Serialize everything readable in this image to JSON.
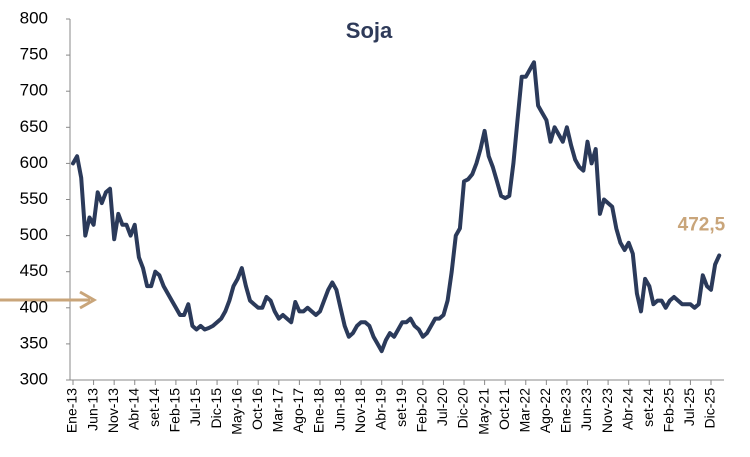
{
  "chart_data": {
    "type": "line",
    "title": "Soja",
    "end_label": "472,5",
    "categories": [
      "Ene-13",
      null,
      null,
      null,
      null,
      "Jun-13",
      null,
      null,
      null,
      null,
      "Nov-13",
      null,
      null,
      null,
      null,
      "Abr-14",
      null,
      null,
      null,
      null,
      "set-14",
      null,
      null,
      null,
      null,
      "Feb-15",
      null,
      null,
      null,
      null,
      "Jul-15",
      null,
      null,
      null,
      null,
      "Dic-15",
      null,
      null,
      null,
      null,
      "May-16",
      null,
      null,
      null,
      null,
      "Oct-16",
      null,
      null,
      null,
      null,
      "Mar-17",
      null,
      null,
      null,
      null,
      "Ago-17",
      null,
      null,
      null,
      null,
      "Ene-18",
      null,
      null,
      null,
      null,
      "Jun-18",
      null,
      null,
      null,
      null,
      "Nov-18",
      null,
      null,
      null,
      null,
      "Abr-19",
      null,
      null,
      null,
      null,
      "set-19",
      null,
      null,
      null,
      null,
      "Feb-20",
      null,
      null,
      null,
      null,
      "Jul-20",
      null,
      null,
      null,
      null,
      "Dic-20",
      null,
      null,
      null,
      null,
      "May-21",
      null,
      null,
      null,
      null,
      "Oct-21",
      null,
      null,
      null,
      null,
      "Mar-22",
      null,
      null,
      null,
      null,
      "Ago-22",
      null,
      null,
      null,
      null,
      "Ene-23",
      null,
      null,
      null,
      null,
      "Jun-23",
      null,
      null,
      null,
      null,
      "Nov-23",
      null,
      null,
      null,
      null,
      "Abr-24",
      null,
      null,
      null,
      null,
      "set-24",
      null,
      null,
      null,
      null,
      "Feb-25",
      null,
      null,
      null,
      null,
      "Jul-25",
      null,
      null,
      null,
      null,
      "Dic-25",
      null,
      null
    ],
    "series": [
      {
        "name": "Soja",
        "color": "#2b3a5a",
        "values": [
          600,
          610,
          580,
          500,
          525,
          515,
          560,
          545,
          560,
          565,
          495,
          530,
          515,
          515,
          500,
          515,
          470,
          455,
          430,
          430,
          450,
          445,
          430,
          420,
          410,
          400,
          390,
          390,
          405,
          375,
          370,
          375,
          370,
          372,
          375,
          380,
          385,
          395,
          410,
          430,
          440,
          455,
          430,
          410,
          405,
          400,
          400,
          415,
          410,
          395,
          385,
          390,
          385,
          380,
          408,
          395,
          395,
          400,
          395,
          390,
          395,
          410,
          425,
          435,
          425,
          400,
          375,
          360,
          365,
          375,
          380,
          380,
          375,
          360,
          350,
          340,
          355,
          365,
          360,
          370,
          380,
          380,
          385,
          375,
          370,
          360,
          365,
          375,
          385,
          385,
          390,
          410,
          450,
          500,
          510,
          575,
          578,
          585,
          600,
          620,
          645,
          610,
          595,
          575,
          555,
          552,
          555,
          600,
          660,
          720,
          720,
          730,
          740,
          680,
          670,
          660,
          630,
          650,
          640,
          630,
          650,
          625,
          605,
          595,
          590,
          630,
          600,
          620,
          530,
          550,
          545,
          540,
          510,
          490,
          480,
          490,
          475,
          420,
          395,
          440,
          430,
          405,
          410,
          410,
          400,
          410,
          415,
          410,
          405,
          405,
          405,
          400,
          405,
          445,
          430,
          425,
          460,
          472.5
        ]
      }
    ],
    "end_label_color": "#c9a57a",
    "ylim": [
      300,
      800
    ],
    "yticks": [
      300,
      350,
      400,
      450,
      500,
      550,
      600,
      650,
      700,
      750,
      800
    ],
    "grid": false
  }
}
